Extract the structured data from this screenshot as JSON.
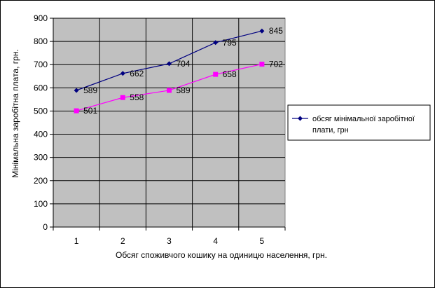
{
  "chart_data": {
    "type": "line",
    "x": [
      1,
      2,
      3,
      4,
      5
    ],
    "x_tick_labels": [
      "1",
      "2",
      "3",
      "4",
      "5"
    ],
    "series": [
      {
        "name": "обсяг мінімальної заробітної плати, грн",
        "values": [
          589,
          662,
          704,
          795,
          845
        ],
        "labels": [
          "589",
          "662",
          "704",
          "795",
          "845"
        ],
        "color": "#000080",
        "marker": "diamond",
        "in_legend": true
      },
      {
        "name": "",
        "values": [
          501,
          558,
          589,
          658,
          702
        ],
        "labels": [
          "501",
          "558",
          "589",
          "658",
          "702"
        ],
        "color": "#ff00ff",
        "marker": "square",
        "in_legend": false
      }
    ],
    "xlabel": "Обсяг споживчого кошику на одиницю населення, грн.",
    "ylabel": "Мінімальна заробітна плата, грн.",
    "ylim": [
      0,
      900
    ],
    "y_ticks": [
      0,
      100,
      200,
      300,
      400,
      500,
      600,
      700,
      800,
      900
    ],
    "grid": true,
    "plot_background": "#c0c0c0",
    "legend_position": "right"
  }
}
